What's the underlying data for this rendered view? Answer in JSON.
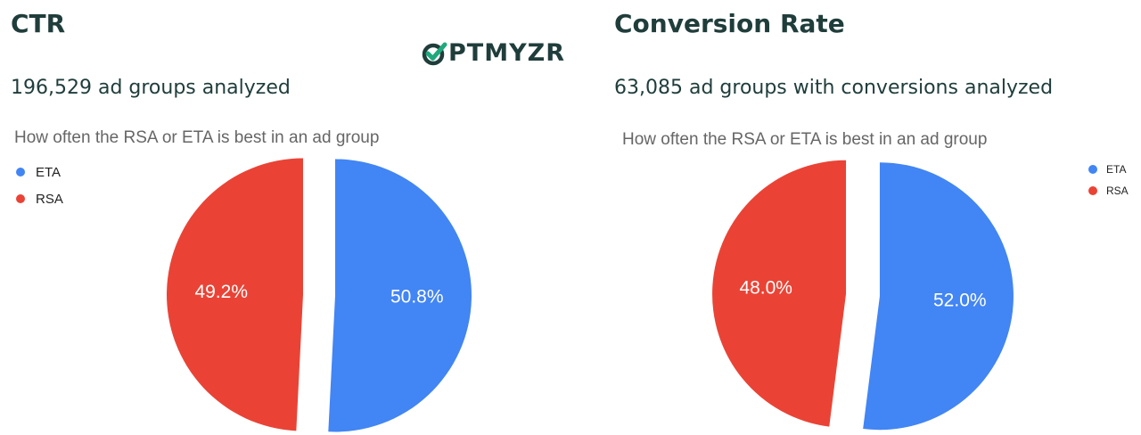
{
  "logo": {
    "text": "PTMYZR",
    "accent_color": "#1ea97c",
    "brand_color": "#1f3d3b"
  },
  "panels": [
    {
      "title": "CTR",
      "subtitle": "196,529 ad groups analyzed"
    },
    {
      "title": "Conversion Rate",
      "subtitle": "63,085 ad groups with conversions analyzed"
    }
  ],
  "chart_data": [
    {
      "type": "pie",
      "title": "How often the RSA or ETA is best in an ad group",
      "legend_position": "left",
      "categories": [
        "ETA",
        "RSA"
      ],
      "values": [
        50.8,
        49.2
      ],
      "labels": [
        "50.8%",
        "49.2%"
      ],
      "colors": [
        "#4285f4",
        "#ea4335"
      ],
      "slices_exploded": true
    },
    {
      "type": "pie",
      "title": "How often the RSA or ETA is best in an ad group",
      "legend_position": "right",
      "categories": [
        "ETA",
        "RSA"
      ],
      "values": [
        52.0,
        48.0
      ],
      "labels": [
        "52.0%",
        "48.0%"
      ],
      "colors": [
        "#4285f4",
        "#ea4335"
      ],
      "slices_exploded": true
    }
  ]
}
